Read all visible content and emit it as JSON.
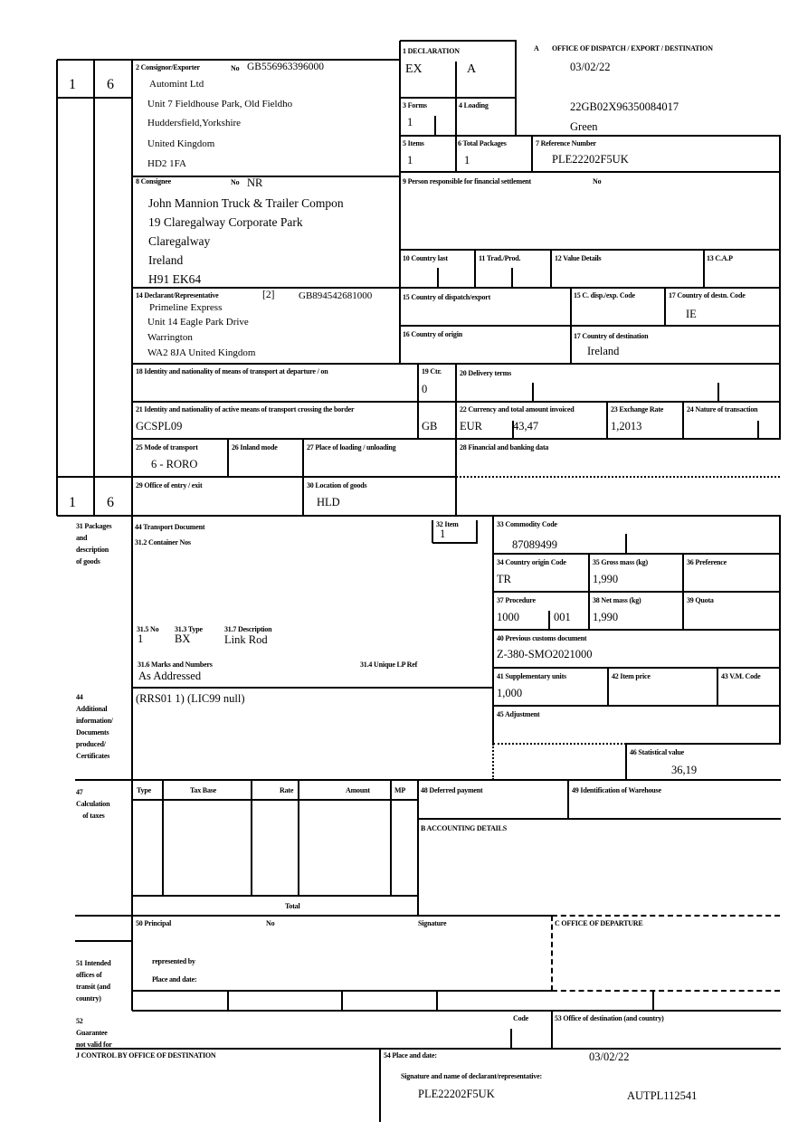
{
  "side": {
    "copy_no": "1",
    "copy_no2": "6"
  },
  "box1": {
    "label": "1 DECLARATION",
    "type": "EX",
    "subtype": "A"
  },
  "boxA": {
    "letter": "A",
    "label": "OFFICE OF DISPATCH / EXPORT / DESTINATION",
    "date": "03/02/22",
    "mrn": "22GB02X96350084017",
    "route": "Green"
  },
  "box2": {
    "label": "2 Consignor/Exporter",
    "no_label": "No",
    "no": "GB556963396000",
    "lines": [
      "Automint Ltd",
      "Unit 7 Fieldhouse Park, Old Fieldho",
      "Huddersfield,Yorkshire",
      "United Kingdom",
      "HD2 1FA"
    ]
  },
  "box3": {
    "label": "3 Forms",
    "value": "1"
  },
  "box4": {
    "label": "4 Loading"
  },
  "box5": {
    "label": "5 Items",
    "value": "1"
  },
  "box6": {
    "label": "6 Total Packages",
    "value": "1"
  },
  "box7": {
    "label": "7 Reference Number",
    "value": "PLE22202F5UK"
  },
  "box8": {
    "label": "8 Consignee",
    "no_label": "No",
    "no": "NR",
    "lines": [
      "John Mannion Truck & Trailer Compon",
      "19 Claregalway Corporate Park",
      "Claregalway",
      "Ireland",
      "H91 EK64"
    ]
  },
  "box9": {
    "label": "9 Person responsible for financial settlement",
    "no_label": "No"
  },
  "box10": {
    "label": "10 Country last"
  },
  "box11": {
    "label": "11 Trad./Prod."
  },
  "box12": {
    "label": "12 Value Details"
  },
  "box13": {
    "label": "13 C.A.P"
  },
  "box14": {
    "label": "14 Declarant/Representative",
    "code": "[2]",
    "no": "GB894542681000",
    "lines": [
      "Primeline Express",
      "Unit 14 Eagle Park Drive",
      "Warrington",
      "WA2 8JA United Kingdom"
    ]
  },
  "box15": {
    "label": "15 Country of dispatch/export"
  },
  "box15c": {
    "label": "15 C. disp./exp. Code"
  },
  "box17c": {
    "label": "17 Country of destn. Code",
    "value": "IE"
  },
  "box16": {
    "label": "16 Country of origin"
  },
  "box17": {
    "label": "17 Country of destination",
    "value": "Ireland"
  },
  "box18": {
    "label": "18 Identity and nationality of means of transport at departure / on"
  },
  "box19": {
    "label": "19 Ctr.",
    "value": "0"
  },
  "box20": {
    "label": "20 Delivery terms"
  },
  "box21": {
    "label": "21 Identity and nationality of active means of transport crossing the border",
    "value": "GCSPL09",
    "nationality": "GB"
  },
  "box22": {
    "label": "22 Currency and total amount invoiced",
    "currency": "EUR",
    "amount": "43,47"
  },
  "box23": {
    "label": "23 Exchange Rate",
    "value": "1,2013"
  },
  "box24": {
    "label": "24 Nature of transaction"
  },
  "box25": {
    "label": "25 Mode of transport",
    "value": "6 - RORO"
  },
  "box26": {
    "label": "26 Inland mode"
  },
  "box27": {
    "label": "27 Place of loading / unloading"
  },
  "box28": {
    "label": "28 Financial and banking data"
  },
  "box29": {
    "label": "29 Office of entry / exit"
  },
  "box30": {
    "label": "30 Location of goods",
    "value": "HLD"
  },
  "box31": {
    "side_label": "31 Packages\nand\ndescription\nof goods",
    "transport_doc": "44 Transport Document",
    "container": "31.2 Container Nos",
    "no_label": "31.5 No",
    "no": "1",
    "type_label": "31.3 Type",
    "type": "BX",
    "desc_label": "31.7 Description",
    "desc": "Link Rod",
    "marks_label": "31.6 Marks and Numbers",
    "marks": "As Addressed",
    "lp_label": "31.4 Unique LP Ref"
  },
  "box32": {
    "label": "32 Item",
    "value": "1"
  },
  "box33": {
    "label": "33 Commodity Code",
    "value": "87089499"
  },
  "box34": {
    "label": "34 Country origin Code",
    "value": "TR"
  },
  "box35": {
    "label": "35 Gross mass (kg)",
    "value": "1,990"
  },
  "box36": {
    "label": "36 Preference"
  },
  "box37": {
    "label": "37 Procedure",
    "value": "1000",
    "value2": "001"
  },
  "box38": {
    "label": "38 Net mass (kg)",
    "value": "1,990"
  },
  "box39": {
    "label": "39 Quota"
  },
  "box40": {
    "label": "40 Previous customs document",
    "value": "Z-380-SMO2021000"
  },
  "box41": {
    "label": "41 Supplementary units",
    "value": "1,000"
  },
  "box42": {
    "label": "42 Item price"
  },
  "box43": {
    "label": "43 V.M. Code"
  },
  "box44": {
    "side_label": "44\nAdditional\ninformation/\nDocuments\nproduced/\nCertificates",
    "value": "(RRS01 1) (LIC99 null)"
  },
  "box45": {
    "label": "45 Adjustment"
  },
  "box46": {
    "label": "46 Statistical value",
    "value": "36,19"
  },
  "box47": {
    "side_label": "47\nCalculation\n    of taxes",
    "headers": [
      "Type",
      "Tax Base",
      "Rate",
      "Amount",
      "MP"
    ],
    "total": "Total"
  },
  "box48": {
    "label": "48 Deferred payment"
  },
  "box49": {
    "label": "49 Identification of Warehouse"
  },
  "boxB": {
    "label": "B ACCOUNTING DETAILS"
  },
  "box50": {
    "label": "50 Principal",
    "no_label": "No",
    "signature": "Signature",
    "represented": "represented by",
    "place": "Place and date:"
  },
  "boxC": {
    "label": "C OFFICE OF DEPARTURE"
  },
  "box51": {
    "side_label": "51 Intended\noffices of\ntransit (and\ncountry)"
  },
  "box52": {
    "side_label": "52\nGuarantee\nnot valid for",
    "code": "Code"
  },
  "box53": {
    "label": "53 Office of destination (and country)"
  },
  "boxJ": {
    "label": "J CONTROL BY OFFICE OF DESTINATION"
  },
  "box54": {
    "label": "54 Place and date:",
    "date": "03/02/22",
    "sig_label": "Signature and name of declarant/representative:",
    "ref": "PLE22202F5UK",
    "auth": "AUTPL112541"
  }
}
